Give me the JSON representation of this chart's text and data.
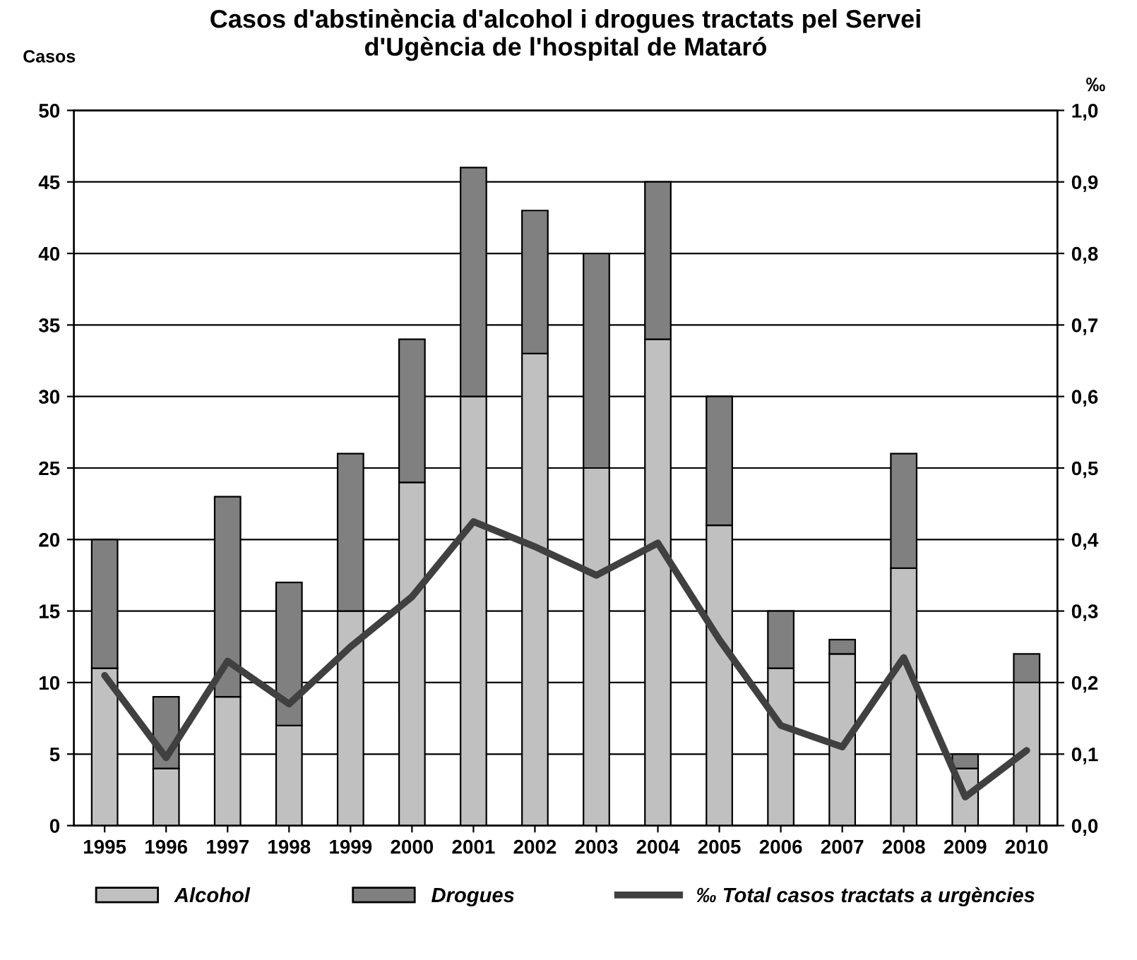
{
  "chart_data": {
    "type": "bar",
    "stacked": true,
    "title": "Casos d'abstinència d'alcohol i drogues tractats pel Servei\nd'Ugència de l'hospital de Mataró",
    "ylabel": "Casos",
    "y2label": "‰",
    "categories": [
      "1995",
      "1996",
      "1997",
      "1998",
      "1999",
      "2000",
      "2001",
      "2002",
      "2003",
      "2004",
      "2005",
      "2006",
      "2007",
      "2008",
      "2009",
      "2010"
    ],
    "series": [
      {
        "name": "Alcohol",
        "color": "#c0c0c0",
        "values": [
          11,
          4,
          9,
          7,
          15,
          24,
          30,
          33,
          25,
          34,
          21,
          11,
          12,
          18,
          4,
          10
        ]
      },
      {
        "name": "Drogues",
        "color": "#808080",
        "values": [
          9,
          5,
          14,
          10,
          11,
          10,
          16,
          10,
          15,
          11,
          9,
          4,
          1,
          8,
          1,
          2
        ]
      },
      {
        "name": "‰ Total casos tractats a urgències",
        "type": "line",
        "axis": "y2",
        "color": "#404040",
        "values": [
          0.21,
          0.095,
          0.23,
          0.17,
          0.25,
          0.32,
          0.425,
          0.39,
          0.35,
          0.395,
          0.26,
          0.14,
          0.11,
          0.235,
          0.04,
          0.105
        ]
      }
    ],
    "ylim": [
      0,
      50
    ],
    "yticks": [
      0,
      5,
      10,
      15,
      20,
      25,
      30,
      35,
      40,
      45,
      50
    ],
    "y2lim": [
      0,
      1.0
    ],
    "y2ticks": [
      {
        "value": 0,
        "label": "0,0"
      },
      {
        "value": 0.1,
        "label": "0,1"
      },
      {
        "value": 0.2,
        "label": "0,2"
      },
      {
        "value": 0.3,
        "label": "0,3"
      },
      {
        "value": 0.4,
        "label": "0,4"
      },
      {
        "value": 0.5,
        "label": "0,5"
      },
      {
        "value": 0.6,
        "label": "0,6"
      },
      {
        "value": 0.7,
        "label": "0,7"
      },
      {
        "value": 0.8,
        "label": "0,8"
      },
      {
        "value": 0.9,
        "label": "0,9"
      },
      {
        "value": 1.0,
        "label": "1,0"
      }
    ],
    "grid": "y",
    "legend": "bottom"
  }
}
